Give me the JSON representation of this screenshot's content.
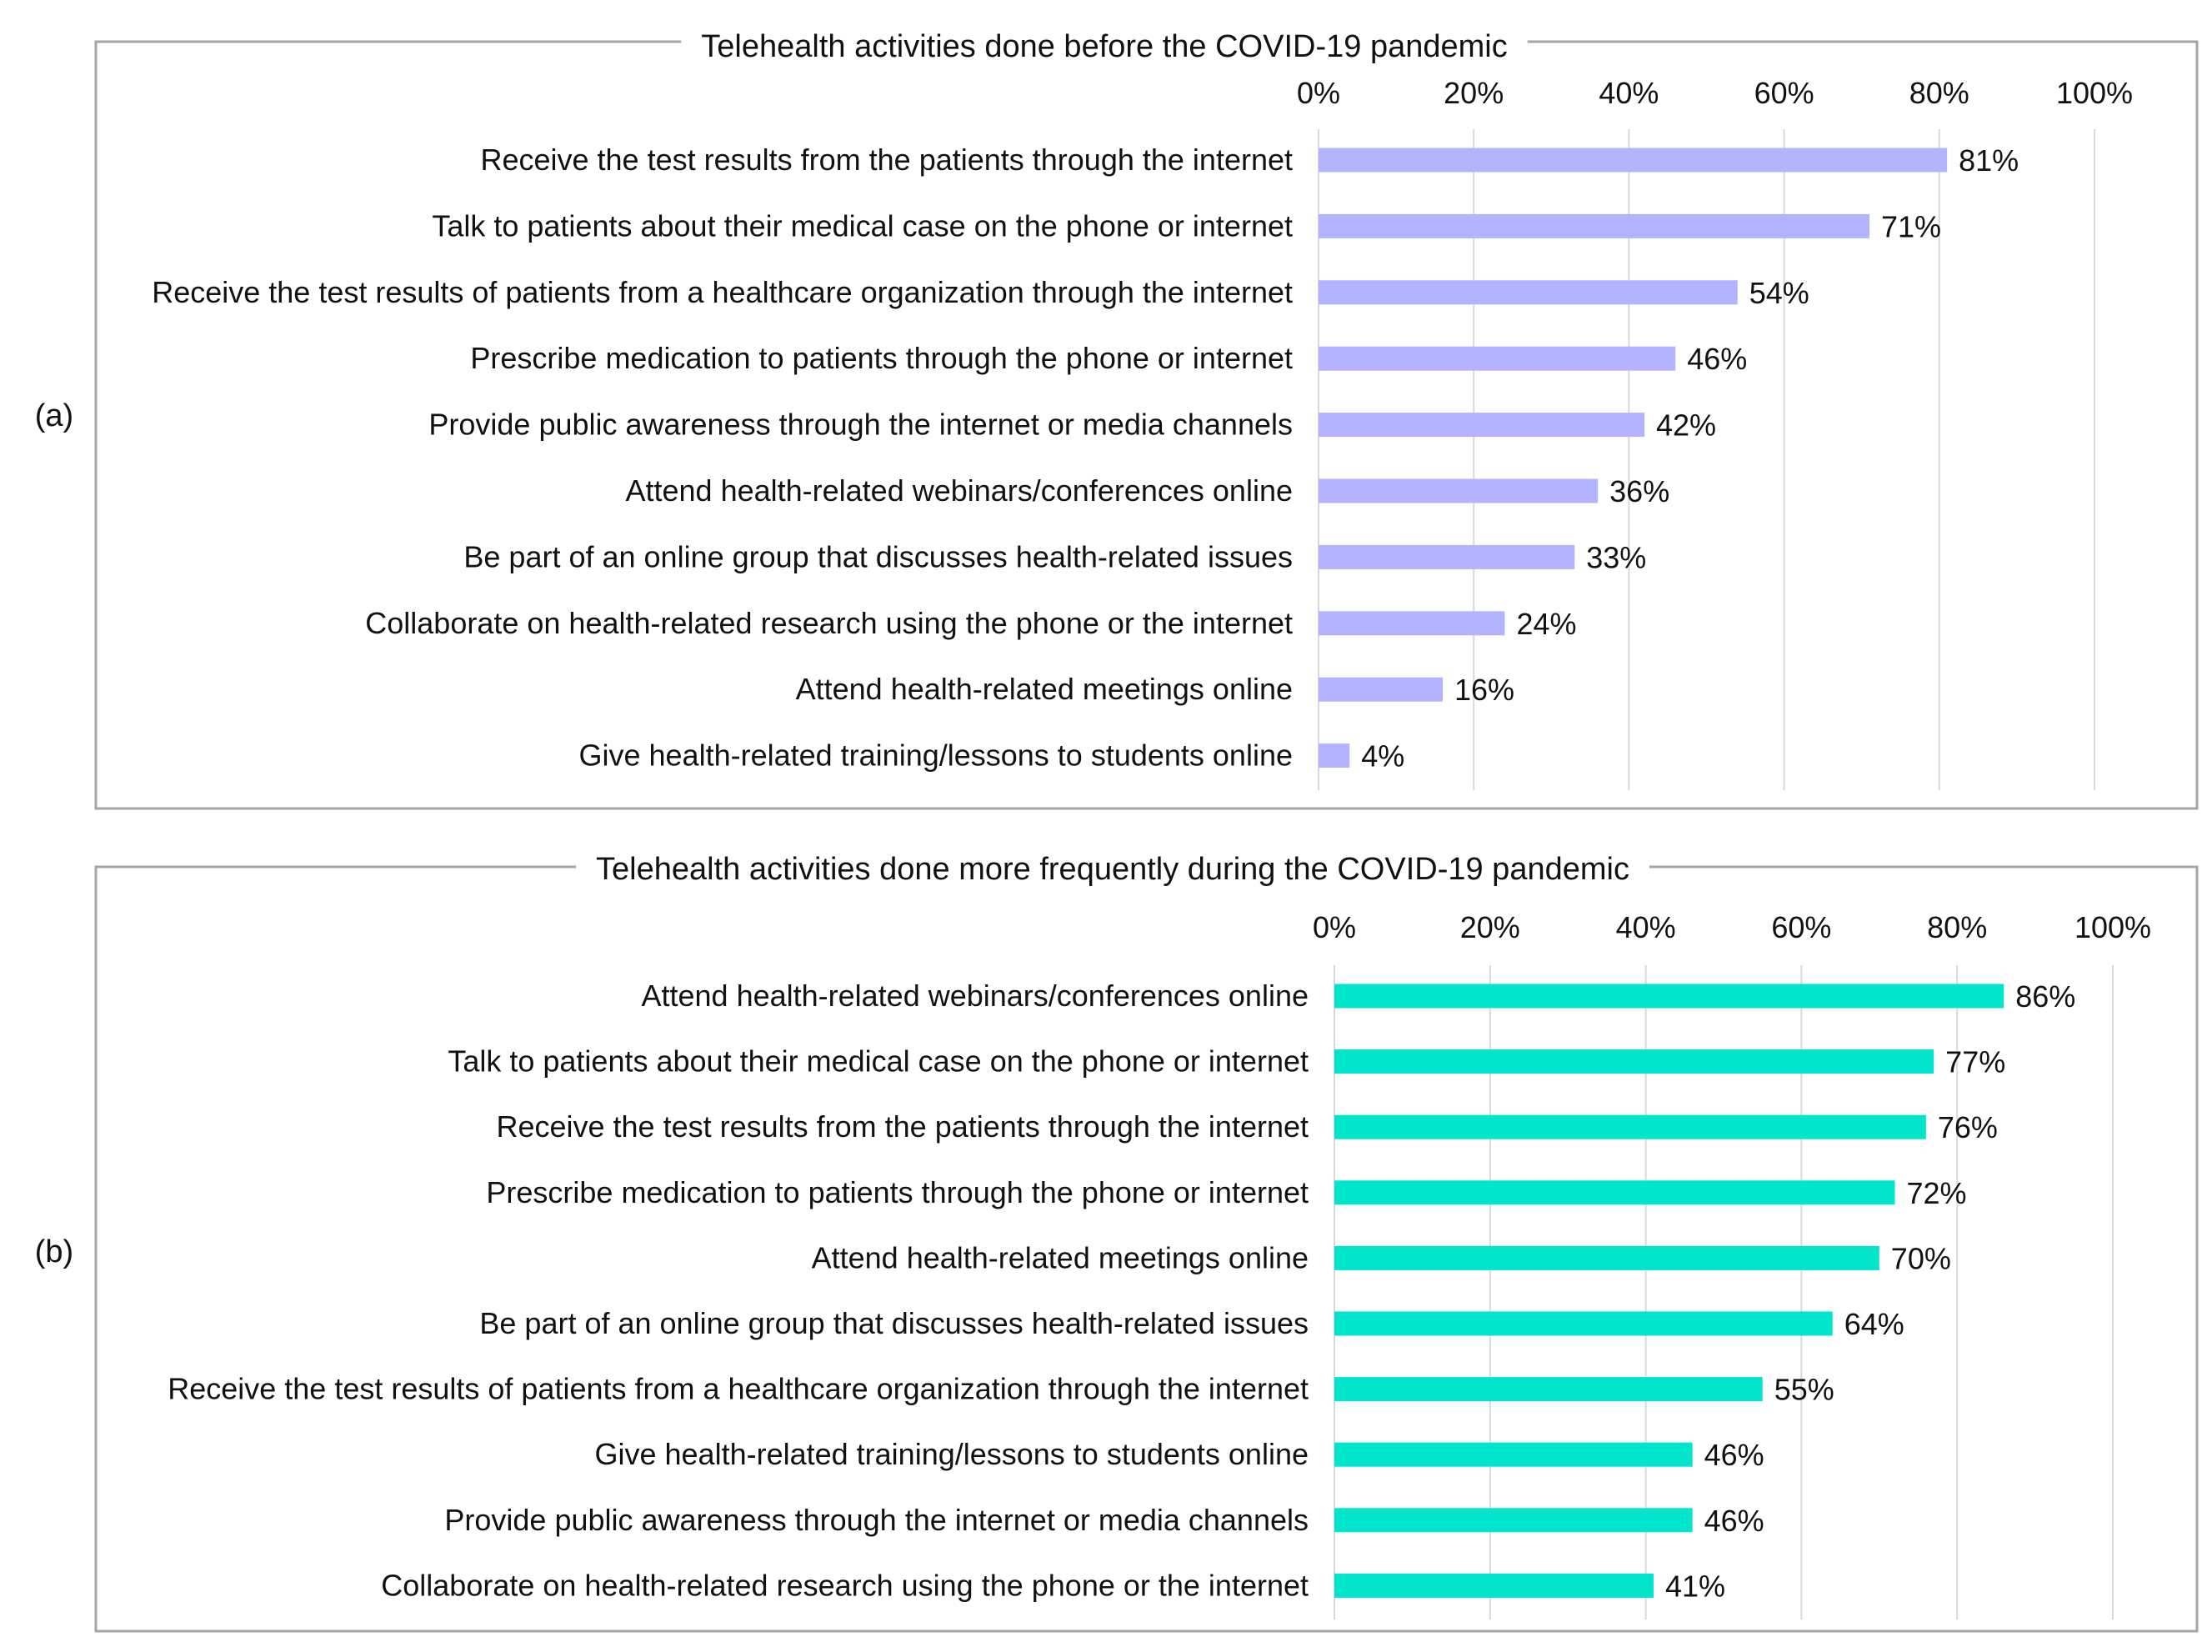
{
  "panels": [
    {
      "letter": "(a)"
    },
    {
      "letter": "(b)"
    }
  ],
  "chart_data": [
    {
      "type": "bar",
      "orientation": "horizontal",
      "title": "Telehealth activities done before the COVID-19 pandemic",
      "xlim": [
        0,
        100
      ],
      "xticks": [
        "0%",
        "20%",
        "40%",
        "60%",
        "80%",
        "100%"
      ],
      "grid": true,
      "bar_color": "#b3b3ff",
      "categories": [
        "Receive the test results from the patients through the internet",
        "Talk to patients about their medical case on the phone or internet",
        "Receive the test results of patients from a healthcare organization through the internet",
        "Prescribe medication to patients through the phone or internet",
        "Provide public awareness through the internet or media channels",
        "Attend health-related webinars/conferences online",
        "Be part of an online group that discusses health-related issues",
        "Collaborate on health-related research using the phone or the internet",
        "Attend health-related meetings online",
        "Give health-related training/lessons to students online"
      ],
      "values": [
        81,
        71,
        54,
        46,
        42,
        36,
        33,
        24,
        16,
        4
      ],
      "value_labels": [
        "81%",
        "71%",
        "54%",
        "46%",
        "42%",
        "36%",
        "33%",
        "24%",
        "16%",
        "4%"
      ]
    },
    {
      "type": "bar",
      "orientation": "horizontal",
      "title": "Telehealth activities done more frequently during the COVID-19 pandemic",
      "xlim": [
        0,
        100
      ],
      "xticks": [
        "0%",
        "20%",
        "40%",
        "60%",
        "80%",
        "100%"
      ],
      "grid": true,
      "bar_color": "#00e5cc",
      "categories": [
        "Attend health-related webinars/conferences online",
        "Talk to patients about their medical case on the phone or internet",
        "Receive the test results from the patients through the internet",
        "Prescribe medication to patients through the phone or internet",
        "Attend health-related meetings online",
        "Be part of an online group that discusses health-related issues",
        "Receive the test results of patients from a healthcare organization through the internet",
        "Give health-related training/lessons to students online",
        "Provide public awareness through the internet or media channels",
        "Collaborate on health-related research using the phone or the internet"
      ],
      "values": [
        86,
        77,
        76,
        72,
        70,
        64,
        55,
        46,
        46,
        41
      ],
      "value_labels": [
        "86%",
        "77%",
        "76%",
        "72%",
        "70%",
        "64%",
        "55%",
        "46%",
        "46%",
        "41%"
      ]
    }
  ]
}
